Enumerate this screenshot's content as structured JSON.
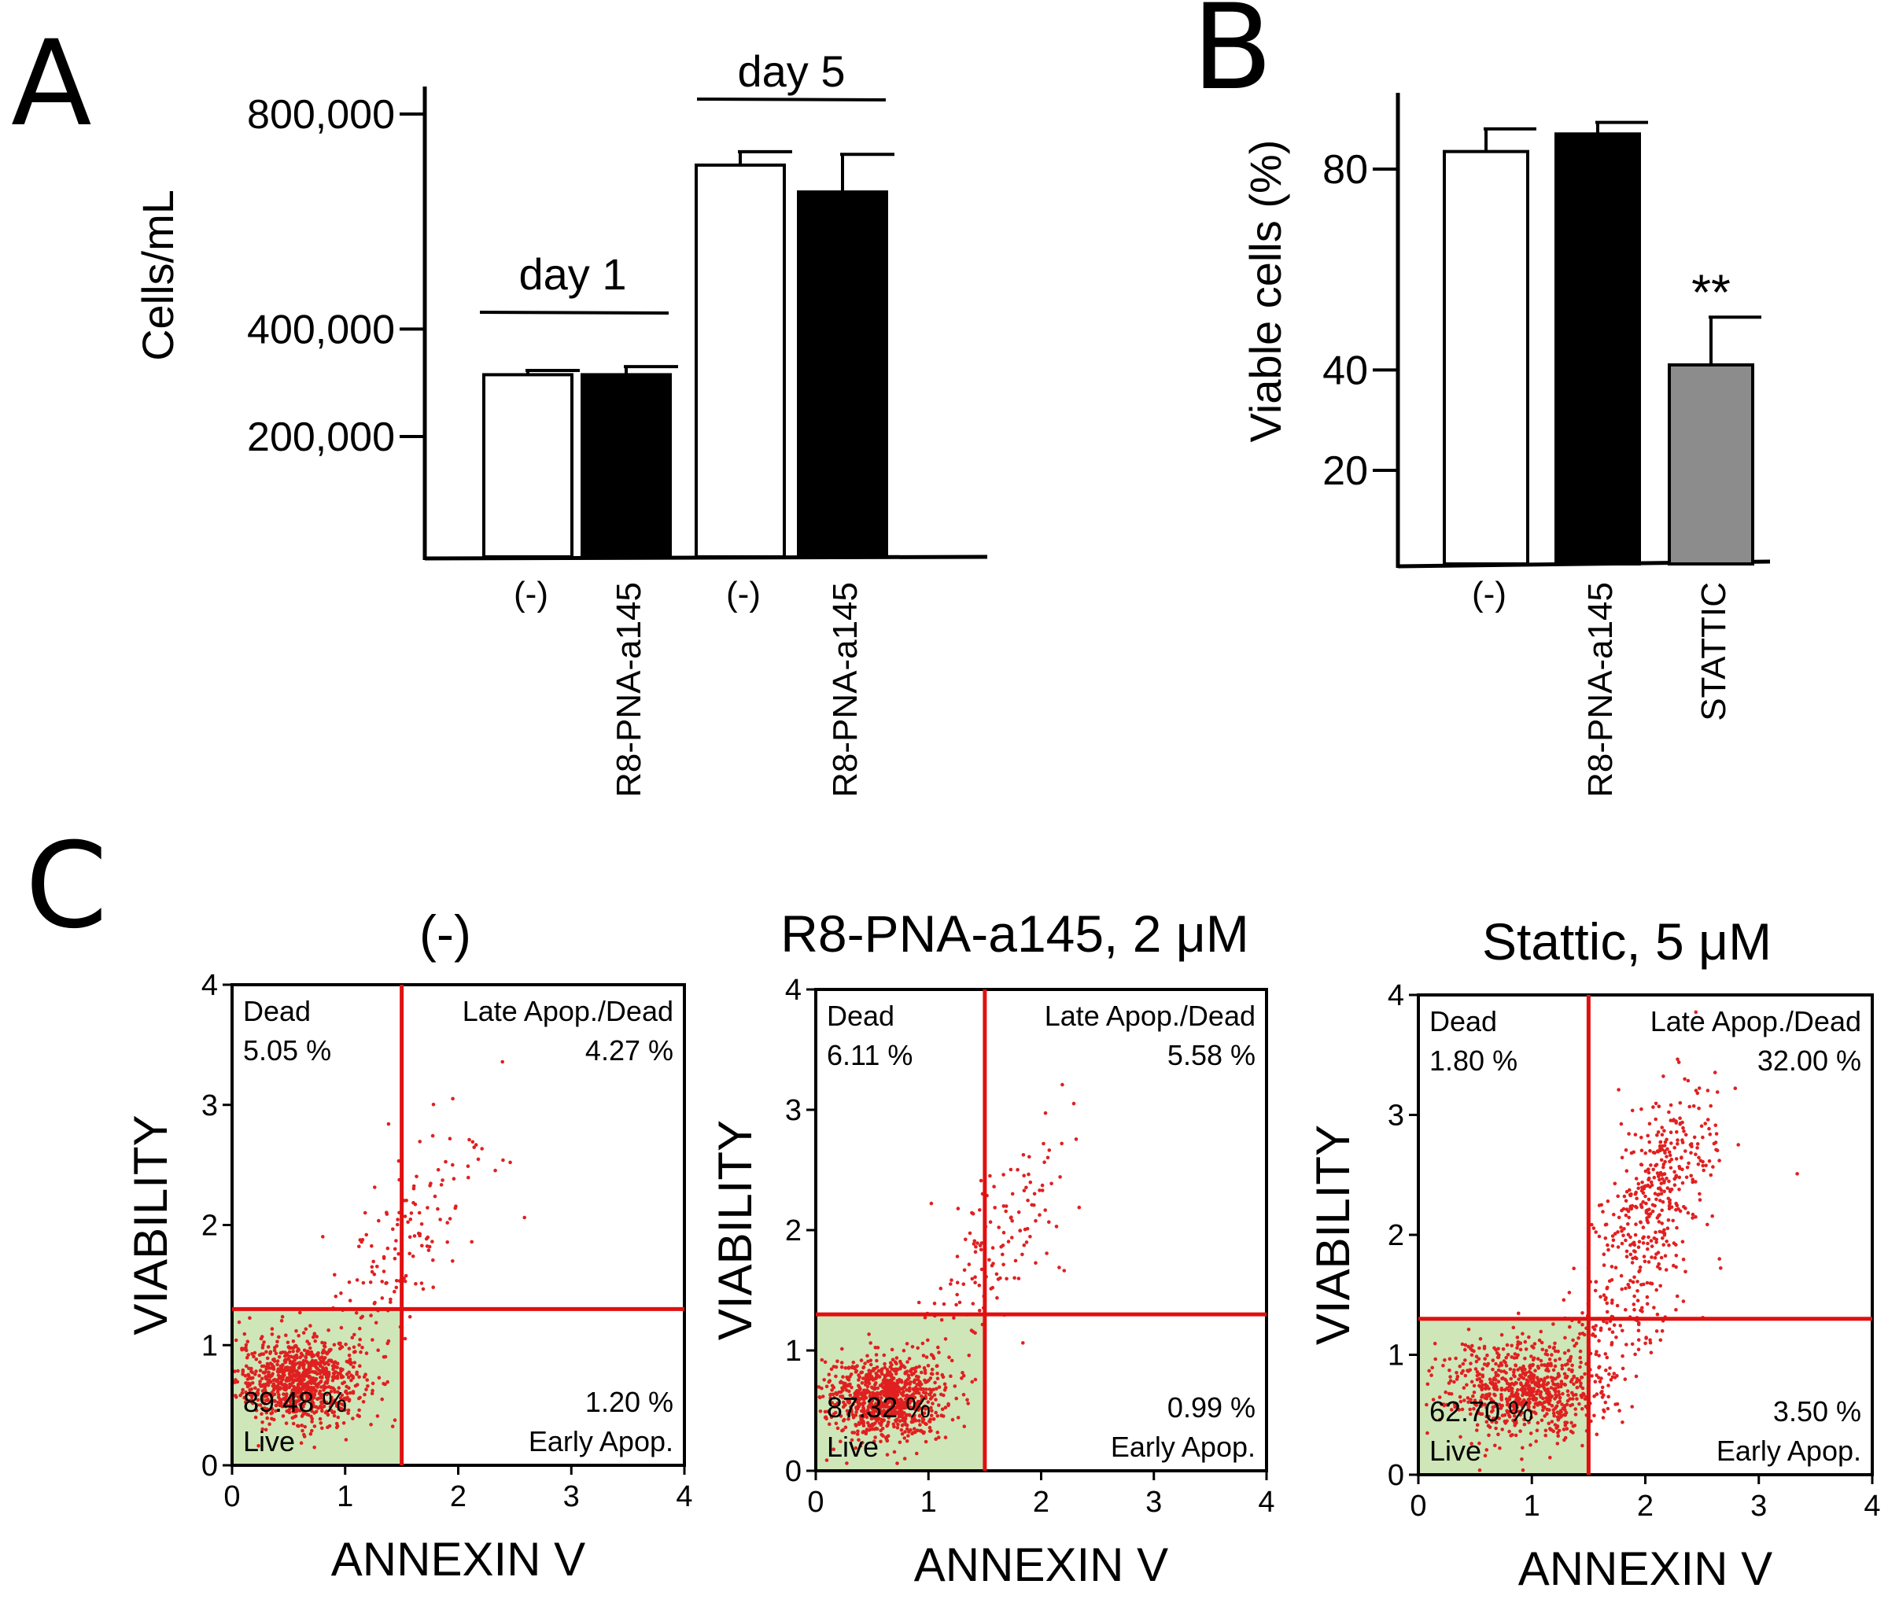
{
  "panel_labels": [
    "A",
    "B",
    "C"
  ],
  "chart_data": [
    {
      "id": "A",
      "type": "bar",
      "title": "",
      "xlabel": "",
      "ylabel": "Cells/mL",
      "ylim": [
        0,
        850000
      ],
      "yticks": [
        200000,
        400000,
        800000
      ],
      "ytick_labels": [
        "200,000",
        "400,000",
        "800,000"
      ],
      "groups": [
        "day 1",
        "day 5"
      ],
      "categories": [
        "(-)",
        "R8-PNA-a145",
        "(-)",
        "R8-PNA-a145"
      ],
      "category_group": [
        0,
        0,
        1,
        1
      ],
      "values": [
        315000,
        315000,
        705000,
        655000
      ],
      "errors": [
        8000,
        15000,
        25000,
        70000
      ],
      "bar_colors": [
        "#ffffff",
        "#000000",
        "#ffffff",
        "#000000"
      ]
    },
    {
      "id": "B",
      "type": "bar",
      "title": "",
      "xlabel": "",
      "ylabel": "Viable cells (%)",
      "ylim": [
        0,
        95
      ],
      "yticks": [
        20,
        40,
        80
      ],
      "ytick_labels": [
        "20",
        "40",
        "80"
      ],
      "categories": [
        "(-)",
        "R8-PNA-a145",
        "STATTIC"
      ],
      "values": [
        83.5,
        87,
        41
      ],
      "errors": [
        4.5,
        2.3,
        9.5
      ],
      "bar_colors": [
        "#ffffff",
        "#000000",
        "#8c8c8c"
      ],
      "annotations": [
        {
          "category": 2,
          "text": "**"
        }
      ]
    },
    {
      "id": "C",
      "type": "scatter",
      "xlabel": "ANNEXIN V",
      "ylabel": "VIABILITY",
      "xlim": [
        0,
        4
      ],
      "ylim": [
        0,
        4
      ],
      "ticks": [
        "0",
        "1",
        "2",
        "3",
        "4"
      ],
      "quadrant_labels": [
        "Dead",
        "Late Apop./Dead",
        "Live",
        "Early Apop."
      ],
      "plots": [
        {
          "title": "(-)",
          "gate_x": 1.5,
          "gate_y": 1.3,
          "pct_dead": "5.05 %",
          "pct_late": "4.27 %",
          "pct_live": "89.48 %",
          "pct_early": "1.20 %",
          "clusters": [
            {
              "cx": 0.6,
              "cy": 0.7,
              "sx": 0.28,
              "sy": 0.18,
              "n": 900
            },
            {
              "cx": 1.4,
              "cy": 1.6,
              "sx": 0.35,
              "sy": 0.35,
              "n": 110
            },
            {
              "cx": 1.8,
              "cy": 2.3,
              "sx": 0.35,
              "sy": 0.35,
              "n": 45
            }
          ]
        },
        {
          "title": "R8-PNA-a145, 2 μM",
          "gate_x": 1.5,
          "gate_y": 1.3,
          "pct_dead": "6.11 %",
          "pct_late": "5.58 %",
          "pct_live": "87.32 %",
          "pct_early": "0.99 %",
          "clusters": [
            {
              "cx": 0.6,
              "cy": 0.6,
              "sx": 0.28,
              "sy": 0.17,
              "n": 900
            },
            {
              "cx": 1.5,
              "cy": 1.7,
              "sx": 0.35,
              "sy": 0.35,
              "n": 110
            },
            {
              "cx": 1.9,
              "cy": 2.2,
              "sx": 0.3,
              "sy": 0.35,
              "n": 40
            }
          ]
        },
        {
          "title": "Stattic, 5 μM",
          "gate_x": 1.5,
          "gate_y": 1.3,
          "pct_dead": "1.80 %",
          "pct_late": "32.00 %",
          "pct_live": "62.70 %",
          "pct_early": "3.50 %",
          "clusters": [
            {
              "cx": 0.9,
              "cy": 0.7,
              "sx": 0.35,
              "sy": 0.2,
              "n": 700
            },
            {
              "cx": 1.7,
              "cy": 1.2,
              "sx": 0.4,
              "sy": 0.4,
              "n": 200
            },
            {
              "cx": 2.1,
              "cy": 2.4,
              "sx": 0.25,
              "sy": 0.35,
              "n": 380
            }
          ]
        }
      ]
    }
  ],
  "colors": {
    "axis": "#000000",
    "gate_line": "#e01010",
    "dot": "#e02020",
    "live_quadrant_fill": "#cfe6b8",
    "plot_border": "#000000"
  }
}
